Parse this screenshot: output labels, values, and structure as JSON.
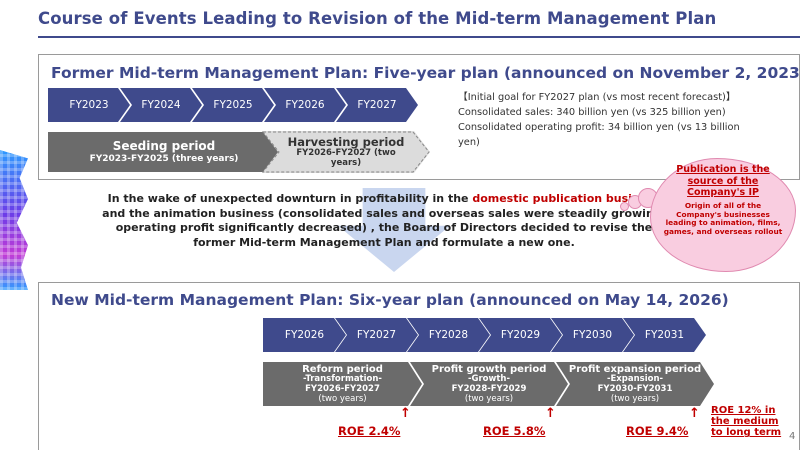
{
  "title": "Course of Events Leading to Revision of the Mid-term Management Plan",
  "former": {
    "heading": "Former Mid-term Management Plan: Five-year plan (announced on November 2, 2023)",
    "years": [
      "FY2023",
      "FY2024",
      "FY2025",
      "FY2026",
      "FY2027"
    ],
    "seeding": {
      "label": "Seeding period",
      "sub": "FY2023-FY2025 (three years)"
    },
    "harvesting": {
      "label": "Harvesting period",
      "sub": "FY2026-FY2027 (two years)"
    },
    "goal": {
      "header": "【Initial goal for FY2027 plan (vs most recent forecast)】",
      "sales": "Consolidated sales: 340 billion yen (vs 325 billion yen)",
      "op_profit": "Consolidated operating profit: 34 billion yen (vs 13 billion yen)"
    }
  },
  "narrative": {
    "part1": "In the wake of unexpected downturn in profitability in the ",
    "highlight": "domestic publication business",
    "part2": " and the animation business (consolidated sales and overseas sales were steadily growing, operating profit significantly decreased) , the Board of Directors  decided to revise the former Mid-term Management Plan and formulate a new one."
  },
  "callout": {
    "title": "Publication is the source of the Company's IP",
    "body": "Origin of all of the Company's businesses leading to animation, films, games, and overseas rollout"
  },
  "new": {
    "heading": "New Mid-term Management Plan: Six-year plan (announced on May 14, 2026)",
    "years": [
      "FY2026",
      "FY2027",
      "FY2028",
      "FY2029",
      "FY2030",
      "FY2031"
    ],
    "periods": [
      {
        "label": "Reform period",
        "sub1": "-Transformation-",
        "sub2": "FY2026-FY2027",
        "sub3": "(two years)"
      },
      {
        "label": "Profit growth period",
        "sub1": "-Growth-",
        "sub2": "FY2028-FY2029",
        "sub3": "(two years)"
      },
      {
        "label": "Profit expansion period",
        "sub1": "-Expansion-",
        "sub2": "FY2030-FY2031",
        "sub3": "(two years)"
      }
    ],
    "roe": [
      "ROE 2.4%",
      "ROE 5.8%",
      "ROE 9.4%"
    ],
    "roe_arrow": "↑",
    "roe_target": "ROE 12% in the medium to long term"
  },
  "page_number": "4",
  "colors": {
    "navy": "#3f4a8c",
    "gray": "#6b6b6b",
    "red": "#c00000",
    "pink": "#f9cde0"
  }
}
